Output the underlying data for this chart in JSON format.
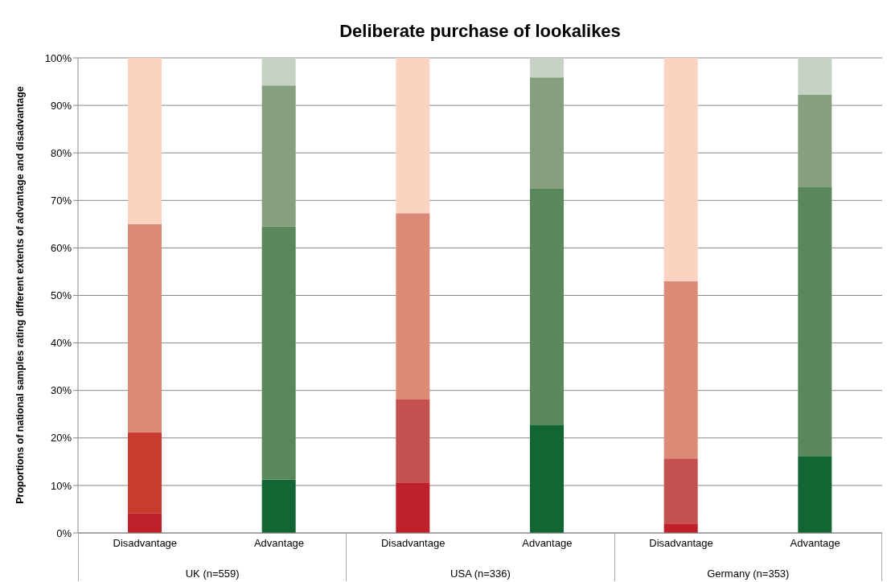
{
  "chart_data": {
    "type": "bar",
    "title": "Deliberate purchase of lookalikes",
    "ylabel": "Proportions of national samples rating different extents of advantage and disadvantage",
    "categories": [
      "Disadvantage",
      "Advantage",
      "Disadvantage",
      "Advantage",
      "Disadvantage",
      "Advantage"
    ],
    "annotations": [
      "UK (n=559)",
      "USA (n=336)",
      "Germany (n=353)"
    ],
    "stacked": true,
    "grid": "y",
    "legend": false,
    "ylim": [
      0,
      100
    ],
    "yticks": [
      {
        "value": 0,
        "label": "0%"
      },
      {
        "value": 10,
        "label": "10%"
      },
      {
        "value": 20,
        "label": "20%"
      },
      {
        "value": 30,
        "label": "30%"
      },
      {
        "value": 40,
        "label": "40%"
      },
      {
        "value": 50,
        "label": "50%"
      },
      {
        "value": 60,
        "label": "60%"
      },
      {
        "value": 70,
        "label": "70%"
      },
      {
        "value": 80,
        "label": "80%"
      },
      {
        "value": 90,
        "label": "90%"
      },
      {
        "value": 100,
        "label": "100%"
      }
    ],
    "series": [
      {
        "values": [
          4.2,
          11.2,
          10.5,
          22.8,
          2.0,
          16.2
        ],
        "colors": [
          "#c0202a",
          "#126633",
          "#c0202a",
          "#126633",
          "#c0202a",
          "#126633"
        ]
      },
      {
        "values": [
          17.0,
          53.3,
          17.6,
          49.6,
          13.7,
          56.7
        ],
        "colors": [
          "#c83b2e",
          "#5a875b",
          "#c55050",
          "#5a875b",
          "#c55050",
          "#5a875b"
        ]
      },
      {
        "values": [
          43.8,
          29.7,
          39.2,
          23.5,
          37.3,
          19.3
        ],
        "colors": [
          "#db8b75",
          "#86a07f",
          "#db8b75",
          "#86a07f",
          "#db8b75",
          "#86a07f"
        ]
      },
      {
        "values": [
          35.0,
          5.8,
          32.7,
          4.1,
          47.0,
          7.8
        ],
        "colors": [
          "#fcd2c0",
          "#c6d2c5",
          "#fcd2c0",
          "#c6d2c5",
          "#fcd2c0",
          "#c6d2c5"
        ]
      }
    ]
  }
}
